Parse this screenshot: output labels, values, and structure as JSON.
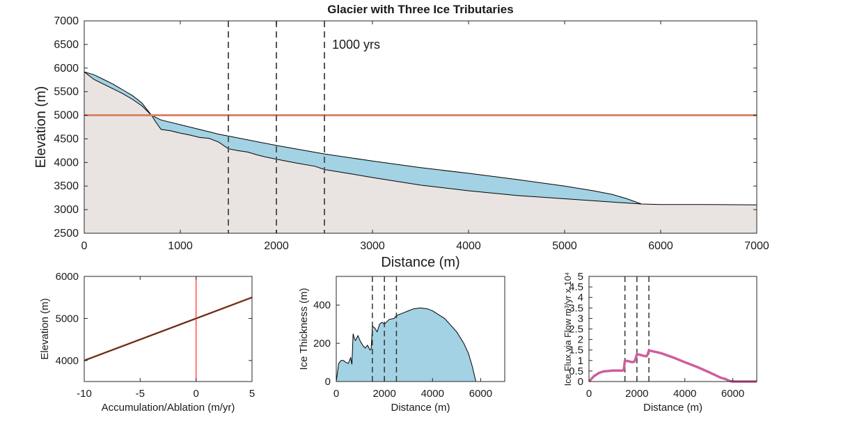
{
  "title": "Glacier with Three Ice Tributaries",
  "colors": {
    "ice": "#a2d2e3",
    "bed": "#e9e4e1",
    "ela_line": "#d9846a",
    "flux_line": "#cd5e9d",
    "red_line": "#ff0000",
    "dash": "#555555",
    "axis": "#262626"
  },
  "chart_data": [
    {
      "id": "profile",
      "type": "area",
      "title": "Glacier with Three Ice Tributaries",
      "xlabel": "Distance (m)",
      "ylabel": "Elevation (m)",
      "xlim": [
        0,
        7000
      ],
      "ylim": [
        2500,
        7000
      ],
      "xticks": [
        0,
        1000,
        2000,
        3000,
        4000,
        5000,
        6000,
        7000
      ],
      "yticks": [
        2500,
        3000,
        3500,
        4000,
        4500,
        5000,
        5500,
        6000,
        6500,
        7000
      ],
      "annotation": "1000 yrs",
      "ela": 5000,
      "tributaries": [
        1500,
        2000,
        2500
      ],
      "bed": {
        "x": [
          0,
          100,
          200,
          300,
          400,
          500,
          600,
          700,
          750,
          800,
          900,
          1000,
          1100,
          1200,
          1300,
          1400,
          1500,
          1600,
          1700,
          1800,
          1900,
          2000,
          2200,
          2400,
          2500,
          2800,
          3000,
          3500,
          4000,
          4500,
          5000,
          5500,
          5800,
          6000,
          6500,
          7000
        ],
        "y": [
          5920,
          5760,
          5660,
          5560,
          5460,
          5340,
          5200,
          5000,
          4840,
          4700,
          4670,
          4620,
          4580,
          4530,
          4510,
          4430,
          4290,
          4250,
          4220,
          4160,
          4110,
          4070,
          3990,
          3920,
          3850,
          3750,
          3680,
          3520,
          3400,
          3300,
          3230,
          3160,
          3120,
          3110,
          3110,
          3100
        ]
      },
      "surface": {
        "x": [
          0,
          100,
          200,
          300,
          400,
          500,
          600,
          700,
          800,
          1000,
          1200,
          1400,
          1500,
          2000,
          2500,
          3000,
          3500,
          4000,
          4500,
          5000,
          5300,
          5500,
          5650,
          5800
        ],
        "y": [
          5920,
          5860,
          5760,
          5660,
          5540,
          5420,
          5260,
          5000,
          4900,
          4800,
          4700,
          4600,
          4560,
          4360,
          4180,
          4030,
          3890,
          3770,
          3640,
          3500,
          3400,
          3320,
          3230,
          3120
        ]
      }
    },
    {
      "id": "mass_balance",
      "type": "line",
      "xlabel": "Accumulation/Ablation (m/yr)",
      "ylabel": "Elevation (m)",
      "xlim": [
        -10,
        5
      ],
      "ylim": [
        3500,
        6000
      ],
      "xticks": [
        -10,
        -5,
        0,
        5
      ],
      "yticks": [
        4000,
        5000,
        6000
      ],
      "x": [
        -10,
        5
      ],
      "y": [
        4000,
        5500
      ],
      "vline": 0
    },
    {
      "id": "thickness",
      "type": "area",
      "xlabel": "Distance (m)",
      "ylabel": "Ice Thickness (m)",
      "xlim": [
        0,
        7000
      ],
      "ylim": [
        0,
        550
      ],
      "xticks": [
        0,
        2000,
        4000,
        6000
      ],
      "yticks": [
        0,
        200,
        400
      ],
      "tributaries": [
        1500,
        2000,
        2500
      ],
      "x": [
        0,
        100,
        200,
        300,
        400,
        500,
        600,
        650,
        700,
        750,
        800,
        900,
        1000,
        1100,
        1200,
        1300,
        1400,
        1450,
        1500,
        1600,
        1700,
        1800,
        1900,
        2000,
        2200,
        2400,
        2500,
        2800,
        3000,
        3200,
        3500,
        3800,
        4000,
        4500,
        5000,
        5300,
        5500,
        5650,
        5800,
        7000
      ],
      "y": [
        0,
        95,
        110,
        110,
        100,
        95,
        125,
        90,
        250,
        225,
        215,
        240,
        210,
        190,
        175,
        190,
        165,
        170,
        290,
        280,
        260,
        300,
        310,
        300,
        325,
        330,
        345,
        360,
        370,
        380,
        385,
        380,
        370,
        330,
        260,
        200,
        145,
        80,
        0,
        0
      ]
    },
    {
      "id": "flux",
      "type": "line",
      "xlabel": "Distance (m)",
      "ylabel": "Ice Flux via Flow m³/yr x 10⁴",
      "xlim": [
        0,
        7000
      ],
      "ylim": [
        0,
        5
      ],
      "xticks": [
        0,
        2000,
        4000,
        6000
      ],
      "yticks": [
        0,
        0.5,
        1,
        1.5,
        2,
        2.5,
        3,
        3.5,
        4,
        4.5,
        5
      ],
      "tributaries": [
        1500,
        2000,
        2500
      ],
      "x": [
        0,
        200,
        400,
        600,
        800,
        1000,
        1200,
        1400,
        1450,
        1500,
        1600,
        1700,
        1800,
        1900,
        1950,
        2000,
        2100,
        2200,
        2300,
        2400,
        2450,
        2500,
        3000,
        3500,
        4000,
        4500,
        5000,
        5500,
        5700,
        5800,
        5900,
        6000,
        7000
      ],
      "y": [
        0,
        0.25,
        0.4,
        0.48,
        0.5,
        0.52,
        0.52,
        0.52,
        0.55,
        0.98,
        0.98,
        0.95,
        0.92,
        0.95,
        1.1,
        1.3,
        1.28,
        1.25,
        1.22,
        1.2,
        1.3,
        1.48,
        1.35,
        1.15,
        0.92,
        0.7,
        0.45,
        0.18,
        0.12,
        0.06,
        0.02,
        0,
        0
      ]
    }
  ]
}
